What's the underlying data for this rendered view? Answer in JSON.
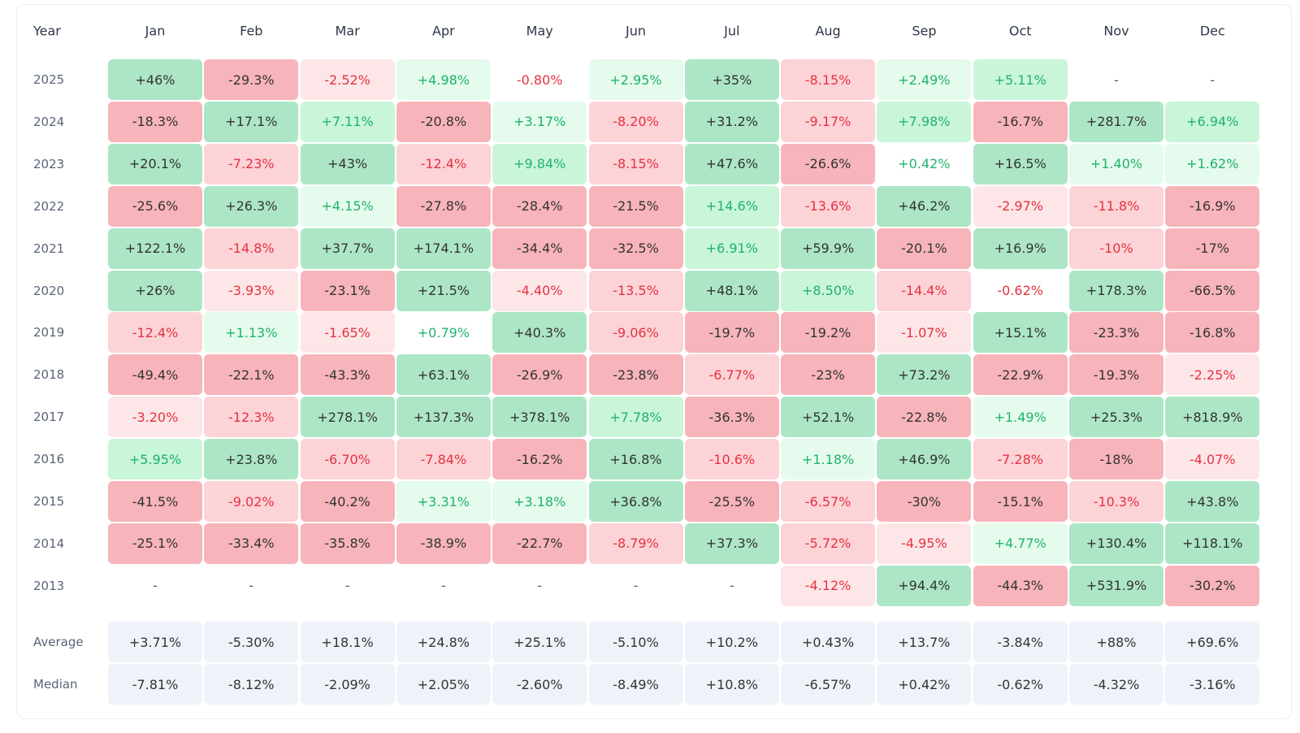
{
  "table": {
    "header": [
      "Year",
      "Jan",
      "Feb",
      "Mar",
      "Apr",
      "May",
      "Jun",
      "Jul",
      "Aug",
      "Sep",
      "Oct",
      "Nov",
      "Dec"
    ],
    "rows": [
      [
        "2025",
        "+46%",
        "-29.3%",
        "-2.52%",
        "+4.98%",
        "-0.80%",
        "+2.95%",
        "+35%",
        "-8.15%",
        "+2.49%",
        "+5.11%",
        "-",
        "-"
      ],
      [
        "2024",
        "-18.3%",
        "+17.1%",
        "+7.11%",
        "-20.8%",
        "+3.17%",
        "-8.20%",
        "+31.2%",
        "-9.17%",
        "+7.98%",
        "-16.7%",
        "+281.7%",
        "+6.94%"
      ],
      [
        "2023",
        "+20.1%",
        "-7.23%",
        "+43%",
        "-12.4%",
        "+9.84%",
        "-8.15%",
        "+47.6%",
        "-26.6%",
        "+0.42%",
        "+16.5%",
        "+1.40%",
        "+1.62%"
      ],
      [
        "2022",
        "-25.6%",
        "+26.3%",
        "+4.15%",
        "-27.8%",
        "-28.4%",
        "-21.5%",
        "+14.6%",
        "-13.6%",
        "+46.2%",
        "-2.97%",
        "-11.8%",
        "-16.9%"
      ],
      [
        "2021",
        "+122.1%",
        "-14.8%",
        "+37.7%",
        "+174.1%",
        "-34.4%",
        "-32.5%",
        "+6.91%",
        "+59.9%",
        "-20.1%",
        "+16.9%",
        "-10%",
        "-17%"
      ],
      [
        "2020",
        "+26%",
        "-3.93%",
        "-23.1%",
        "+21.5%",
        "-4.40%",
        "-13.5%",
        "+48.1%",
        "+8.50%",
        "-14.4%",
        "-0.62%",
        "+178.3%",
        "-66.5%"
      ],
      [
        "2019",
        "-12.4%",
        "+1.13%",
        "-1.65%",
        "+0.79%",
        "+40.3%",
        "-9.06%",
        "-19.7%",
        "-19.2%",
        "-1.07%",
        "+15.1%",
        "-23.3%",
        "-16.8%"
      ],
      [
        "2018",
        "-49.4%",
        "-22.1%",
        "-43.3%",
        "+63.1%",
        "-26.9%",
        "-23.8%",
        "-6.77%",
        "-23%",
        "+73.2%",
        "-22.9%",
        "-19.3%",
        "-2.25%"
      ],
      [
        "2017",
        "-3.20%",
        "-12.3%",
        "+278.1%",
        "+137.3%",
        "+378.1%",
        "+7.78%",
        "-36.3%",
        "+52.1%",
        "-22.8%",
        "+1.49%",
        "+25.3%",
        "+818.9%"
      ],
      [
        "2016",
        "+5.95%",
        "+23.8%",
        "-6.70%",
        "-7.84%",
        "-16.2%",
        "+16.8%",
        "-10.6%",
        "+1.18%",
        "+46.9%",
        "-7.28%",
        "-18%",
        "-4.07%"
      ],
      [
        "2015",
        "-41.5%",
        "-9.02%",
        "-40.2%",
        "+3.31%",
        "+3.18%",
        "+36.8%",
        "-25.5%",
        "-6.57%",
        "-30%",
        "-15.1%",
        "-10.3%",
        "+43.8%"
      ],
      [
        "2014",
        "-25.1%",
        "-33.4%",
        "-35.8%",
        "-38.9%",
        "-22.7%",
        "-8.79%",
        "+37.3%",
        "-5.72%",
        "-4.95%",
        "+4.77%",
        "+130.4%",
        "+118.1%"
      ],
      [
        "2013",
        "-",
        "-",
        "-",
        "-",
        "-",
        "-",
        "-",
        "-4.12%",
        "+94.4%",
        "-44.3%",
        "+531.9%",
        "-30.2%"
      ]
    ],
    "summary": [
      [
        "Average",
        "+3.71%",
        "-5.30%",
        "+18.1%",
        "+24.8%",
        "+25.1%",
        "-5.10%",
        "+10.2%",
        "+0.43%",
        "+13.7%",
        "-3.84%",
        "+88%",
        "+69.6%"
      ],
      [
        "Median",
        "-7.81%",
        "-8.12%",
        "-2.09%",
        "+2.05%",
        "-2.60%",
        "-8.49%",
        "+10.8%",
        "-6.57%",
        "+0.42%",
        "-0.62%",
        "-4.32%",
        "-3.16%"
      ]
    ]
  }
}
